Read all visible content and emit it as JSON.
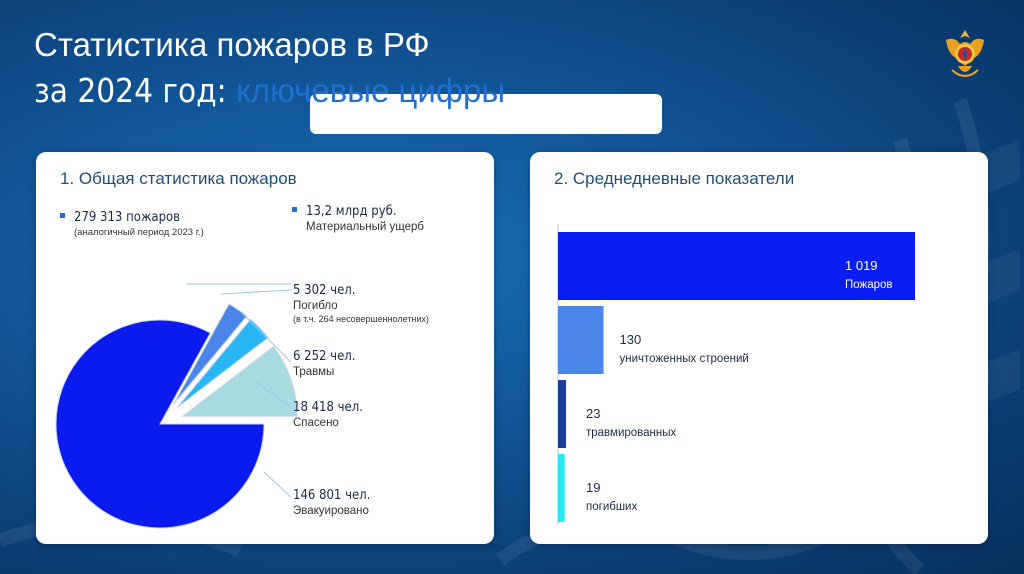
{
  "slide": {
    "title_line1": "Статистика пожаров в РФ",
    "title_line2_prefix": "за 2024 год: ",
    "title_line2_highlight": "ключевые цифры"
  },
  "panel1": {
    "title": "1. Общая статистика пожаров",
    "stats": [
      {
        "value": "279 313 пожаров",
        "label": "(аналогичный период 2023 г.)"
      },
      {
        "value": "13,2 млрд руб.",
        "label": "Материальный ущерб"
      },
      {
        "value": "5 302 чел.",
        "label": "Погибло",
        "sub": "(в т.ч. 264 несовершеннолетних)"
      },
      {
        "value": "6 252 чел.",
        "label": "Травмы"
      },
      {
        "value": "18 418 чел.",
        "label": "Спасено"
      },
      {
        "value": "146 801 чел.",
        "label": "Эвакуировано"
      }
    ]
  },
  "panel2": {
    "title": "2. Среднедневные показатели"
  },
  "chart_data": [
    {
      "type": "pie",
      "exploded": true,
      "values": [
        146801,
        5302,
        6252,
        18418
      ],
      "labels": [
        "Эвакуировано",
        "Погибло",
        "Травмы",
        "Спасено"
      ],
      "colors": [
        "#0b1bf0",
        "#4a86e8",
        "#29b6f6",
        "#a8dbe0"
      ]
    },
    {
      "type": "bar",
      "orientation": "horizontal",
      "categories": [
        "Пожаров",
        "уничтоженных строений",
        "травмированных",
        "погибших"
      ],
      "value_labels": [
        "1 019",
        "130",
        "23",
        "19"
      ],
      "values": [
        1019,
        130,
        23,
        19
      ],
      "colors": [
        "#0a1df2",
        "#4a86e8",
        "#1c3f9c",
        "#24e8f2"
      ]
    }
  ],
  "colors": {
    "accent": "#1f6fd0",
    "title_text": "#ffffff"
  }
}
